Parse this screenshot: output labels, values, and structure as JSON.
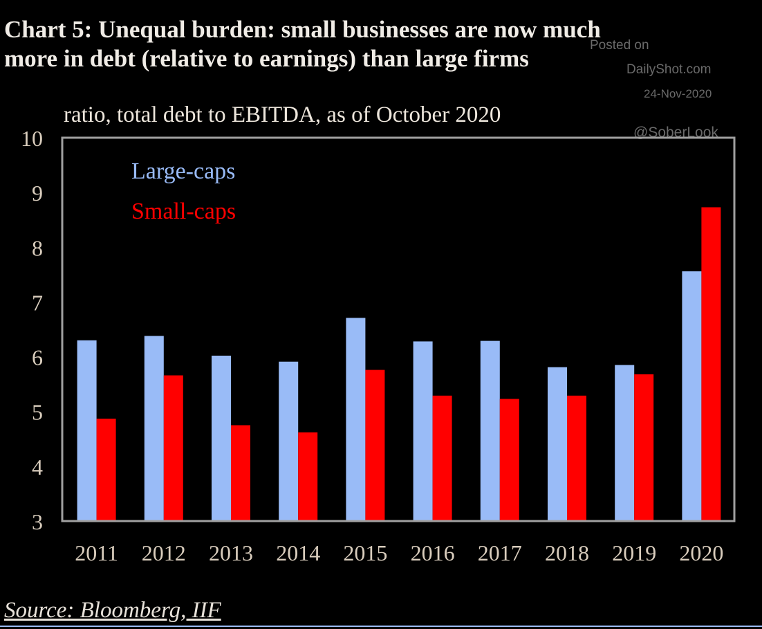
{
  "chart_data": {
    "type": "bar",
    "title": "Chart 5: Unequal burden: small businesses are now much more in debt (relative to earnings) than large firms",
    "title_lines": [
      "Chart 5: Unequal burden: small businesses are now much",
      "more in debt (relative to earnings) than large firms"
    ],
    "subtitle": "ratio, total debt to EBITDA, as of October 2020",
    "xlabel": "",
    "ylabel": "",
    "ylim": [
      3,
      10
    ],
    "yticks": [
      3,
      4,
      5,
      6,
      7,
      8,
      9,
      10
    ],
    "categories": [
      "2011",
      "2012",
      "2013",
      "2014",
      "2015",
      "2016",
      "2017",
      "2018",
      "2019",
      "2020"
    ],
    "series": [
      {
        "name": "Large-caps",
        "color": "#99bbf7",
        "values": [
          6.3,
          6.38,
          6.02,
          5.91,
          6.71,
          6.28,
          6.29,
          5.81,
          5.85,
          7.56
        ]
      },
      {
        "name": "Small-caps",
        "color": "#ff0000",
        "values": [
          4.87,
          5.66,
          4.75,
          4.62,
          5.76,
          5.29,
          5.23,
          5.29,
          5.68,
          8.73
        ]
      }
    ],
    "legend_position": "top-left",
    "grid": false,
    "source": "Source: Bloomberg, IIF"
  },
  "watermark": {
    "line1": "Posted on",
    "line2": "DailyShot.com",
    "date": "24-Nov-2020",
    "handle": "@SoberLook"
  },
  "colors": {
    "background": "#000000",
    "text": "#ede6dc",
    "axis": "#a0a0a0"
  }
}
